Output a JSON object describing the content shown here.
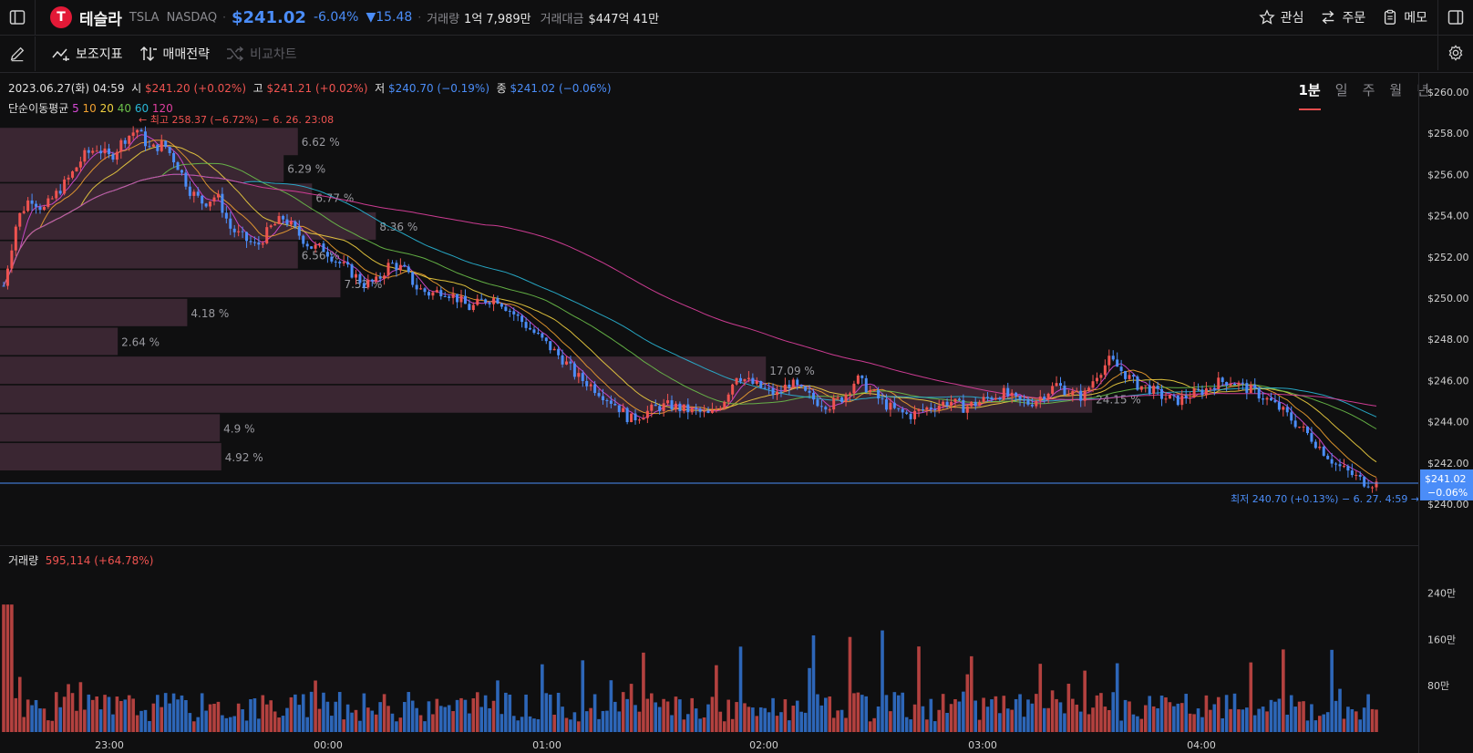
{
  "header": {
    "logo_letter": "T",
    "name": "테슬라",
    "ticker": "TSLA",
    "exchange": "NASDAQ",
    "price": "$241.02",
    "change_pct": "-6.04%",
    "change_abs": "▼15.48",
    "volume_label": "거래량",
    "volume_value": "1억 7,989만",
    "amount_label": "거래대금",
    "amount_value": "$447억 41만",
    "actions": [
      "관심",
      "주문",
      "메모"
    ]
  },
  "toolbar": {
    "indicators": "보조지표",
    "strategy": "매매전략",
    "compare": "비교차트",
    "periods": [
      "1분",
      "일",
      "주",
      "월",
      "년"
    ],
    "active_period": "1분"
  },
  "info": {
    "datetime": "2023.06.27(화) 04:59",
    "open_lbl": "시",
    "open": "$241.20 (+0.02%)",
    "high_lbl": "고",
    "high": "$241.21 (+0.02%)",
    "low_lbl": "저",
    "low": "$240.70 (−0.19%)",
    "close_lbl": "종",
    "close": "$241.02 (−0.06%)",
    "ma_label": "단순이동평균",
    "ma_periods": [
      "5",
      "10",
      "20",
      "40",
      "60",
      "120"
    ],
    "ma_colors": [
      "#d54ad6",
      "#f0a030",
      "#f0d040",
      "#6cc04a",
      "#29b6d6",
      "#e040a0"
    ],
    "max_note": "← 최고 258.37 (−6.72%) − 6. 26. 23:08",
    "min_note": "최저 240.70 (+0.13%) − 6. 27. 4:59 →",
    "last_price_tag": "$241.02",
    "last_change_tag": "−0.06%",
    "volume_label": "거래량",
    "volume_value": "595,114 (+64.78%)"
  },
  "chart_data": {
    "type": "candlestick",
    "ylim": [
      239.5,
      260.5
    ],
    "y_ticks": [
      "$260.00",
      "$258.00",
      "$256.00",
      "$254.00",
      "$252.00",
      "$250.00",
      "$248.00",
      "$246.00",
      "$244.00",
      "$242.00",
      "$240.00"
    ],
    "x_ticks": [
      "23:00",
      "00:00",
      "01:00",
      "02:00",
      "03:00",
      "04:00"
    ],
    "volume_ticks": [
      "240만",
      "160만",
      "80만"
    ],
    "volume_profile": [
      {
        "price": 257.6,
        "pct": "6.62 %",
        "rel": 0.21
      },
      {
        "price": 256.3,
        "pct": "6.29 %",
        "rel": 0.2
      },
      {
        "price": 254.9,
        "pct": "6.77 %",
        "rel": 0.22
      },
      {
        "price": 253.5,
        "pct": "8.36 %",
        "rel": 0.265
      },
      {
        "price": 252.1,
        "pct": "6.56 %",
        "rel": 0.21
      },
      {
        "price": 250.7,
        "pct": "7.52 %",
        "rel": 0.24
      },
      {
        "price": 249.3,
        "pct": "4.18 %",
        "rel": 0.132
      },
      {
        "price": 247.9,
        "pct": "2.64 %",
        "rel": 0.083
      },
      {
        "price": 246.5,
        "pct": "17.09 %",
        "rel": 0.54
      },
      {
        "price": 245.1,
        "pct": "24.15 %",
        "rel": 0.77
      },
      {
        "price": 243.7,
        "pct": "4.9 %",
        "rel": 0.155
      },
      {
        "price": 242.3,
        "pct": "4.92 %",
        "rel": 0.156
      }
    ],
    "close_path": [
      [
        0,
        250.6
      ],
      [
        0.5,
        253.8
      ],
      [
        1,
        254.9
      ],
      [
        1.5,
        254.3
      ],
      [
        2,
        255.1
      ],
      [
        2.5,
        255.9
      ],
      [
        3,
        256.9
      ],
      [
        3.5,
        257.3
      ],
      [
        4,
        256.8
      ],
      [
        4.5,
        257.7
      ],
      [
        5,
        258.2
      ],
      [
        5.5,
        257.2
      ],
      [
        6,
        257.5
      ],
      [
        6.5,
        256.5
      ],
      [
        7,
        255.2
      ],
      [
        7.5,
        254.6
      ],
      [
        8,
        255.0
      ],
      [
        8.5,
        253.4
      ],
      [
        9,
        252.9
      ],
      [
        9.5,
        252.5
      ],
      [
        10,
        253.4
      ],
      [
        10.5,
        253.9
      ],
      [
        11,
        253.2
      ],
      [
        11.5,
        252.5
      ],
      [
        12,
        252.4
      ],
      [
        12.5,
        251.8
      ],
      [
        13,
        251.3
      ],
      [
        13.5,
        250.7
      ],
      [
        14,
        250.8
      ],
      [
        14.5,
        251.7
      ],
      [
        15,
        251.4
      ],
      [
        15.5,
        250.5
      ],
      [
        16,
        250.2
      ],
      [
        16.5,
        250.4
      ],
      [
        17,
        250.0
      ],
      [
        17.5,
        249.5
      ],
      [
        18,
        249.9
      ],
      [
        18.5,
        250.0
      ],
      [
        19,
        249.4
      ],
      [
        19.5,
        248.8
      ],
      [
        20,
        248.2
      ],
      [
        20.5,
        247.6
      ],
      [
        21,
        247.0
      ],
      [
        21.5,
        246.2
      ],
      [
        22,
        245.8
      ],
      [
        22.5,
        245.3
      ],
      [
        23,
        244.8
      ],
      [
        23.5,
        244.1
      ],
      [
        24,
        244.4
      ],
      [
        24.5,
        244.7
      ],
      [
        25,
        244.8
      ],
      [
        25.5,
        244.6
      ],
      [
        26,
        244.5
      ],
      [
        26.5,
        244.3
      ],
      [
        27,
        245.0
      ],
      [
        27.5,
        246.3
      ],
      [
        28,
        245.9
      ],
      [
        28.5,
        245.6
      ],
      [
        29,
        245.3
      ],
      [
        29.5,
        245.9
      ],
      [
        30,
        245.4
      ],
      [
        30.5,
        245.0
      ],
      [
        31,
        244.8
      ],
      [
        31.5,
        245.2
      ],
      [
        32,
        246.1
      ],
      [
        32.5,
        245.5
      ],
      [
        33,
        244.9
      ],
      [
        33.5,
        244.5
      ],
      [
        34,
        244.3
      ],
      [
        34.5,
        244.6
      ],
      [
        35,
        244.8
      ],
      [
        35.5,
        245.0
      ],
      [
        36,
        244.7
      ],
      [
        36.5,
        244.9
      ],
      [
        37,
        245.2
      ],
      [
        37.5,
        245.4
      ],
      [
        38,
        245.0
      ],
      [
        38.5,
        244.9
      ],
      [
        39,
        245.3
      ],
      [
        39.5,
        245.8
      ],
      [
        40,
        245.4
      ],
      [
        40.5,
        245.2
      ],
      [
        41,
        246.3
      ],
      [
        41.5,
        247.0
      ],
      [
        42,
        246.4
      ],
      [
        42.5,
        245.8
      ],
      [
        43,
        245.6
      ],
      [
        43.5,
        245.2
      ],
      [
        44,
        245.0
      ],
      [
        44.5,
        245.3
      ],
      [
        45,
        245.5
      ],
      [
        45.5,
        245.9
      ],
      [
        46,
        246.0
      ],
      [
        46.5,
        245.7
      ],
      [
        47,
        245.4
      ],
      [
        47.5,
        245.0
      ],
      [
        48,
        244.5
      ],
      [
        48.5,
        243.9
      ],
      [
        49,
        243.3
      ],
      [
        49.5,
        242.6
      ],
      [
        50,
        241.9
      ],
      [
        50.5,
        241.5
      ],
      [
        51,
        241.1
      ],
      [
        51.5,
        241.0
      ]
    ],
    "last_price": 241.02
  },
  "colors": {
    "up": "#ef5350",
    "down": "#4b8df8",
    "vol_up": "#b3413f",
    "vol_down": "#2d66b8",
    "profile": "#3a2632",
    "last_line": "#4b8df8"
  }
}
